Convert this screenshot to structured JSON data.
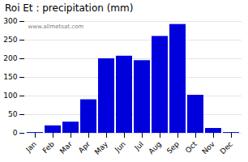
{
  "chart_data": {
    "type": "bar",
    "title": "Roi Et : precipitation (mm)",
    "categories": [
      "Jan",
      "Feb",
      "Mar",
      "Apr",
      "May",
      "Jun",
      "Jul",
      "Aug",
      "Sep",
      "Oct",
      "Nov",
      "Dec"
    ],
    "values": [
      2,
      20,
      30,
      90,
      200,
      207,
      195,
      260,
      292,
      102,
      13,
      2
    ],
    "color": "#0000dd",
    "ylim": [
      0,
      300
    ],
    "yticks": [
      0,
      50,
      100,
      150,
      200,
      250,
      300
    ],
    "grid": true,
    "annotations": [
      "www.allmetsat.com"
    ]
  }
}
